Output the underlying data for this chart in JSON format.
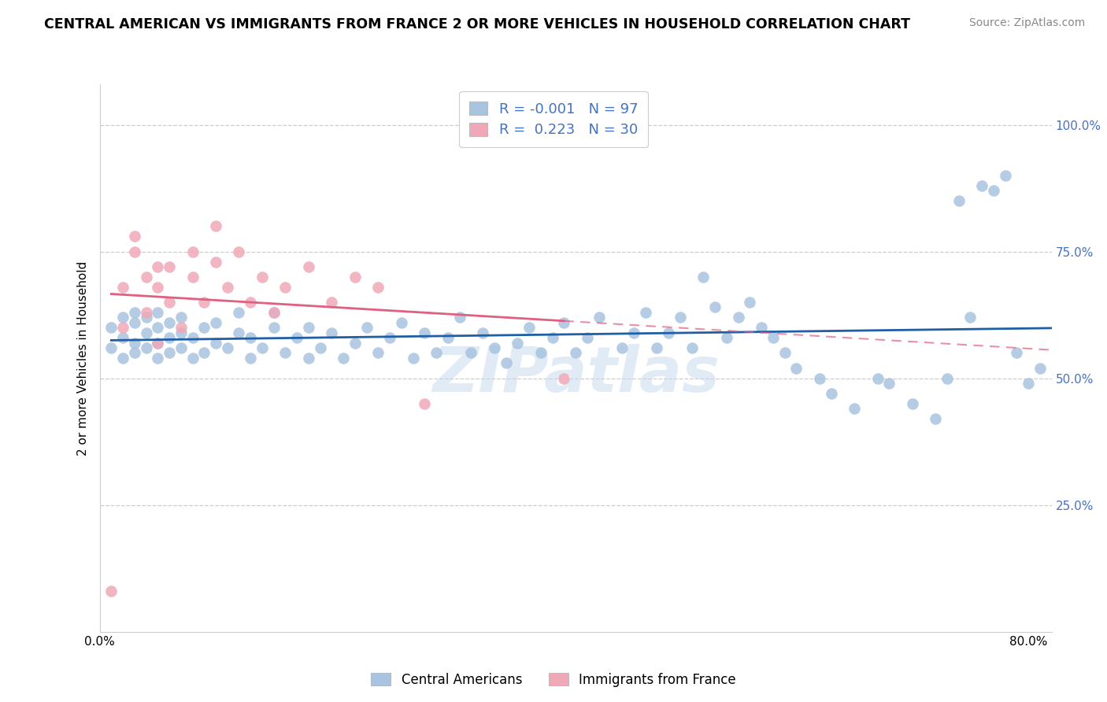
{
  "title": "CENTRAL AMERICAN VS IMMIGRANTS FROM FRANCE 2 OR MORE VEHICLES IN HOUSEHOLD CORRELATION CHART",
  "source": "Source: ZipAtlas.com",
  "ylabel": "2 or more Vehicles in Household",
  "xlim": [
    0.0,
    0.82
  ],
  "ylim": [
    0.0,
    1.08
  ],
  "blue_color": "#a8c4e0",
  "pink_color": "#f0a8b8",
  "blue_line_color": "#1f5fa6",
  "pink_line_color": "#e06080",
  "legend_R_blue": "-0.001",
  "legend_N_blue": "97",
  "legend_R_pink": "0.223",
  "legend_N_pink": "30",
  "legend_label_blue": "Central Americans",
  "legend_label_pink": "Immigrants from France",
  "watermark": "ZIPatlas",
  "title_fontsize": 12.5,
  "source_fontsize": 10,
  "ylabel_fontsize": 11,
  "tick_fontsize": 11,
  "legend_fontsize": 13,
  "grid_color": "#cccccc",
  "right_tick_color": "#4472c4",
  "blue_scatter_x": [
    0.01,
    0.01,
    0.02,
    0.02,
    0.02,
    0.03,
    0.03,
    0.03,
    0.03,
    0.04,
    0.04,
    0.04,
    0.05,
    0.05,
    0.05,
    0.05,
    0.06,
    0.06,
    0.06,
    0.07,
    0.07,
    0.07,
    0.08,
    0.08,
    0.09,
    0.09,
    0.1,
    0.1,
    0.11,
    0.12,
    0.12,
    0.13,
    0.13,
    0.14,
    0.15,
    0.15,
    0.16,
    0.17,
    0.18,
    0.18,
    0.19,
    0.2,
    0.21,
    0.22,
    0.23,
    0.24,
    0.25,
    0.26,
    0.27,
    0.28,
    0.29,
    0.3,
    0.31,
    0.32,
    0.33,
    0.34,
    0.35,
    0.36,
    0.37,
    0.38,
    0.39,
    0.4,
    0.41,
    0.42,
    0.43,
    0.45,
    0.46,
    0.47,
    0.48,
    0.49,
    0.5,
    0.51,
    0.52,
    0.53,
    0.54,
    0.55,
    0.56,
    0.57,
    0.58,
    0.59,
    0.6,
    0.62,
    0.63,
    0.65,
    0.67,
    0.68,
    0.7,
    0.72,
    0.73,
    0.75,
    0.77,
    0.78,
    0.79,
    0.8,
    0.74,
    0.76,
    0.81
  ],
  "blue_scatter_y": [
    0.56,
    0.6,
    0.54,
    0.58,
    0.62,
    0.55,
    0.57,
    0.61,
    0.63,
    0.56,
    0.59,
    0.62,
    0.54,
    0.57,
    0.6,
    0.63,
    0.55,
    0.58,
    0.61,
    0.56,
    0.59,
    0.62,
    0.54,
    0.58,
    0.55,
    0.6,
    0.57,
    0.61,
    0.56,
    0.59,
    0.63,
    0.54,
    0.58,
    0.56,
    0.6,
    0.63,
    0.55,
    0.58,
    0.54,
    0.6,
    0.56,
    0.59,
    0.54,
    0.57,
    0.6,
    0.55,
    0.58,
    0.61,
    0.54,
    0.59,
    0.55,
    0.58,
    0.62,
    0.55,
    0.59,
    0.56,
    0.53,
    0.57,
    0.6,
    0.55,
    0.58,
    0.61,
    0.55,
    0.58,
    0.62,
    0.56,
    0.59,
    0.63,
    0.56,
    0.59,
    0.62,
    0.56,
    0.7,
    0.64,
    0.58,
    0.62,
    0.65,
    0.6,
    0.58,
    0.55,
    0.52,
    0.5,
    0.47,
    0.44,
    0.5,
    0.49,
    0.45,
    0.42,
    0.5,
    0.62,
    0.87,
    0.9,
    0.55,
    0.49,
    0.85,
    0.88,
    0.52
  ],
  "pink_scatter_x": [
    0.01,
    0.02,
    0.02,
    0.03,
    0.03,
    0.04,
    0.04,
    0.05,
    0.05,
    0.05,
    0.06,
    0.06,
    0.07,
    0.08,
    0.08,
    0.09,
    0.1,
    0.1,
    0.11,
    0.12,
    0.13,
    0.14,
    0.15,
    0.16,
    0.18,
    0.2,
    0.22,
    0.24,
    0.28,
    0.4
  ],
  "pink_scatter_y": [
    0.08,
    0.6,
    0.68,
    0.75,
    0.78,
    0.63,
    0.7,
    0.57,
    0.68,
    0.72,
    0.65,
    0.72,
    0.6,
    0.7,
    0.75,
    0.65,
    0.73,
    0.8,
    0.68,
    0.75,
    0.65,
    0.7,
    0.63,
    0.68,
    0.72,
    0.65,
    0.7,
    0.68,
    0.45,
    0.5
  ],
  "ytick_vals": [
    0.25,
    0.5,
    0.75,
    1.0
  ],
  "ytick_labels": [
    "25.0%",
    "50.0%",
    "75.0%",
    "100.0%"
  ]
}
